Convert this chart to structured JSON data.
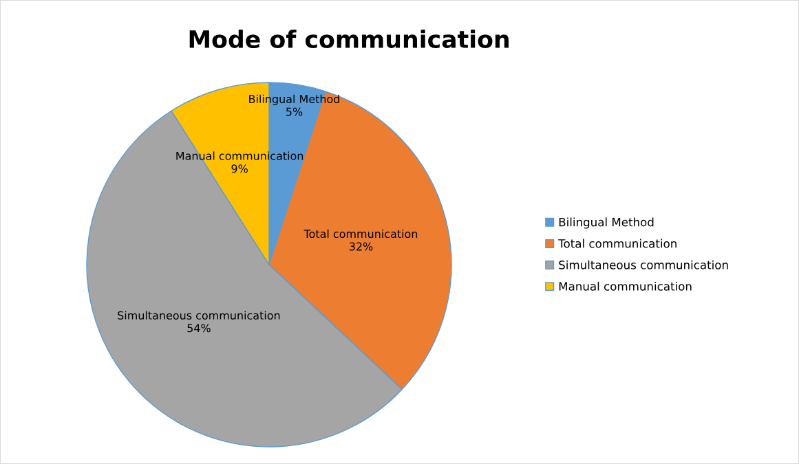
{
  "chart_data": {
    "type": "pie",
    "title": "Mode of communication",
    "categories": [
      "Bilingual Method",
      "Total communication",
      "Simultaneous communication",
      "Manual communication"
    ],
    "values": [
      5,
      32,
      54,
      9
    ],
    "value_labels": [
      "5%",
      "32%",
      "54%",
      "9%"
    ],
    "colors": [
      "#5b9bd5",
      "#ed7d31",
      "#a5a5a5",
      "#ffc000"
    ],
    "legend": "right"
  }
}
